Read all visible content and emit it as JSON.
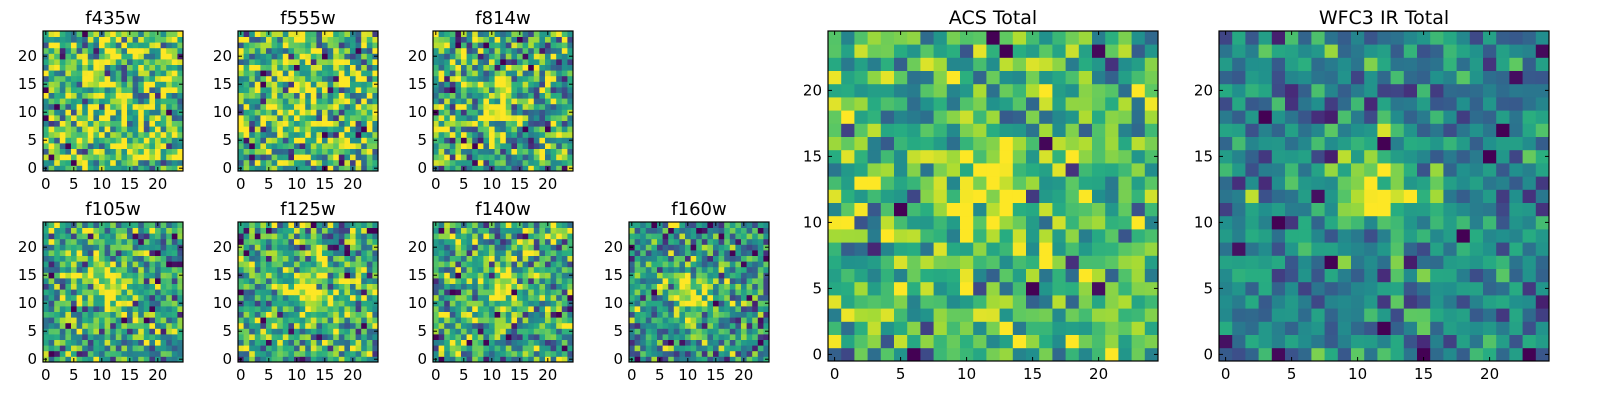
{
  "figure": {
    "colormap": "viridis",
    "colors": {
      "low": "#440154",
      "mid": "#21918c",
      "high": "#fde725",
      "axis": "#000000"
    }
  },
  "chart_data": [
    {
      "type": "heatmap",
      "title": "f435w",
      "xticks": [
        "0",
        "5",
        "10",
        "15",
        "20"
      ],
      "yticks": [
        "0",
        "5",
        "10",
        "15",
        "20"
      ],
      "grid_size": 25,
      "source": {
        "x": 12,
        "y": 11,
        "sigma": 3.0,
        "amp": 0.15
      },
      "noise": 0.55,
      "baseline": 0.7,
      "seed": 11
    },
    {
      "type": "heatmap",
      "title": "f555w",
      "xticks": [
        "0",
        "5",
        "10",
        "15",
        "20"
      ],
      "yticks": [
        "0",
        "5",
        "10",
        "15",
        "20"
      ],
      "grid_size": 25,
      "source": {
        "x": 12,
        "y": 12,
        "sigma": 3.0,
        "amp": 0.25
      },
      "noise": 0.55,
      "baseline": 0.68,
      "seed": 23
    },
    {
      "type": "heatmap",
      "title": "f814w",
      "xticks": [
        "0",
        "5",
        "10",
        "15",
        "20"
      ],
      "yticks": [
        "0",
        "5",
        "10",
        "15",
        "20"
      ],
      "grid_size": 25,
      "source": {
        "x": 11,
        "y": 12,
        "sigma": 2.5,
        "amp": 0.4
      },
      "noise": 0.55,
      "baseline": 0.62,
      "seed": 37
    },
    {
      "type": "heatmap",
      "title": "f105w",
      "xticks": [
        "0",
        "5",
        "10",
        "15",
        "20"
      ],
      "yticks": [
        "0",
        "5",
        "10",
        "15",
        "20"
      ],
      "grid_size": 25,
      "source": {
        "x": 11,
        "y": 12,
        "sigma": 3.0,
        "amp": 0.4
      },
      "noise": 0.45,
      "baseline": 0.58,
      "seed": 41
    },
    {
      "type": "heatmap",
      "title": "f125w",
      "xticks": [
        "0",
        "5",
        "10",
        "15",
        "20"
      ],
      "yticks": [
        "0",
        "5",
        "10",
        "15",
        "20"
      ],
      "grid_size": 25,
      "source": {
        "x": 12,
        "y": 12,
        "sigma": 3.0,
        "amp": 0.35
      },
      "noise": 0.5,
      "baseline": 0.62,
      "seed": 53
    },
    {
      "type": "heatmap",
      "title": "f140w",
      "xticks": [
        "0",
        "5",
        "10",
        "15",
        "20"
      ],
      "yticks": [
        "0",
        "5",
        "10",
        "15",
        "20"
      ],
      "grid_size": 25,
      "source": {
        "x": 12,
        "y": 12,
        "sigma": 3.0,
        "amp": 0.35
      },
      "noise": 0.5,
      "baseline": 0.62,
      "seed": 67
    },
    {
      "type": "heatmap",
      "title": "f160w",
      "xticks": [
        "0",
        "5",
        "10",
        "15",
        "20"
      ],
      "yticks": [
        "0",
        "5",
        "10",
        "15",
        "20"
      ],
      "grid_size": 25,
      "source": {
        "x": 11,
        "y": 12,
        "sigma": 2.8,
        "amp": 0.45
      },
      "noise": 0.45,
      "baseline": 0.52,
      "seed": 79
    },
    {
      "type": "heatmap",
      "title": "ACS Total",
      "xticks": [
        "0",
        "5",
        "10",
        "15",
        "20"
      ],
      "yticks": [
        "0",
        "5",
        "10",
        "15",
        "20"
      ],
      "grid_size": 25,
      "source": {
        "x": 11.5,
        "y": 12,
        "sigma": 2.2,
        "amp": 0.35
      },
      "noise": 0.38,
      "baseline": 0.66,
      "seed": 97
    },
    {
      "type": "heatmap",
      "title": "WFC3 IR Total",
      "xticks": [
        "0",
        "5",
        "10",
        "15",
        "20"
      ],
      "yticks": [
        "0",
        "5",
        "10",
        "15",
        "20"
      ],
      "grid_size": 25,
      "source": {
        "x": 11.5,
        "y": 12.5,
        "sigma": 2.3,
        "amp": 0.55
      },
      "noise": 0.32,
      "baseline": 0.45,
      "seed": 113
    }
  ]
}
